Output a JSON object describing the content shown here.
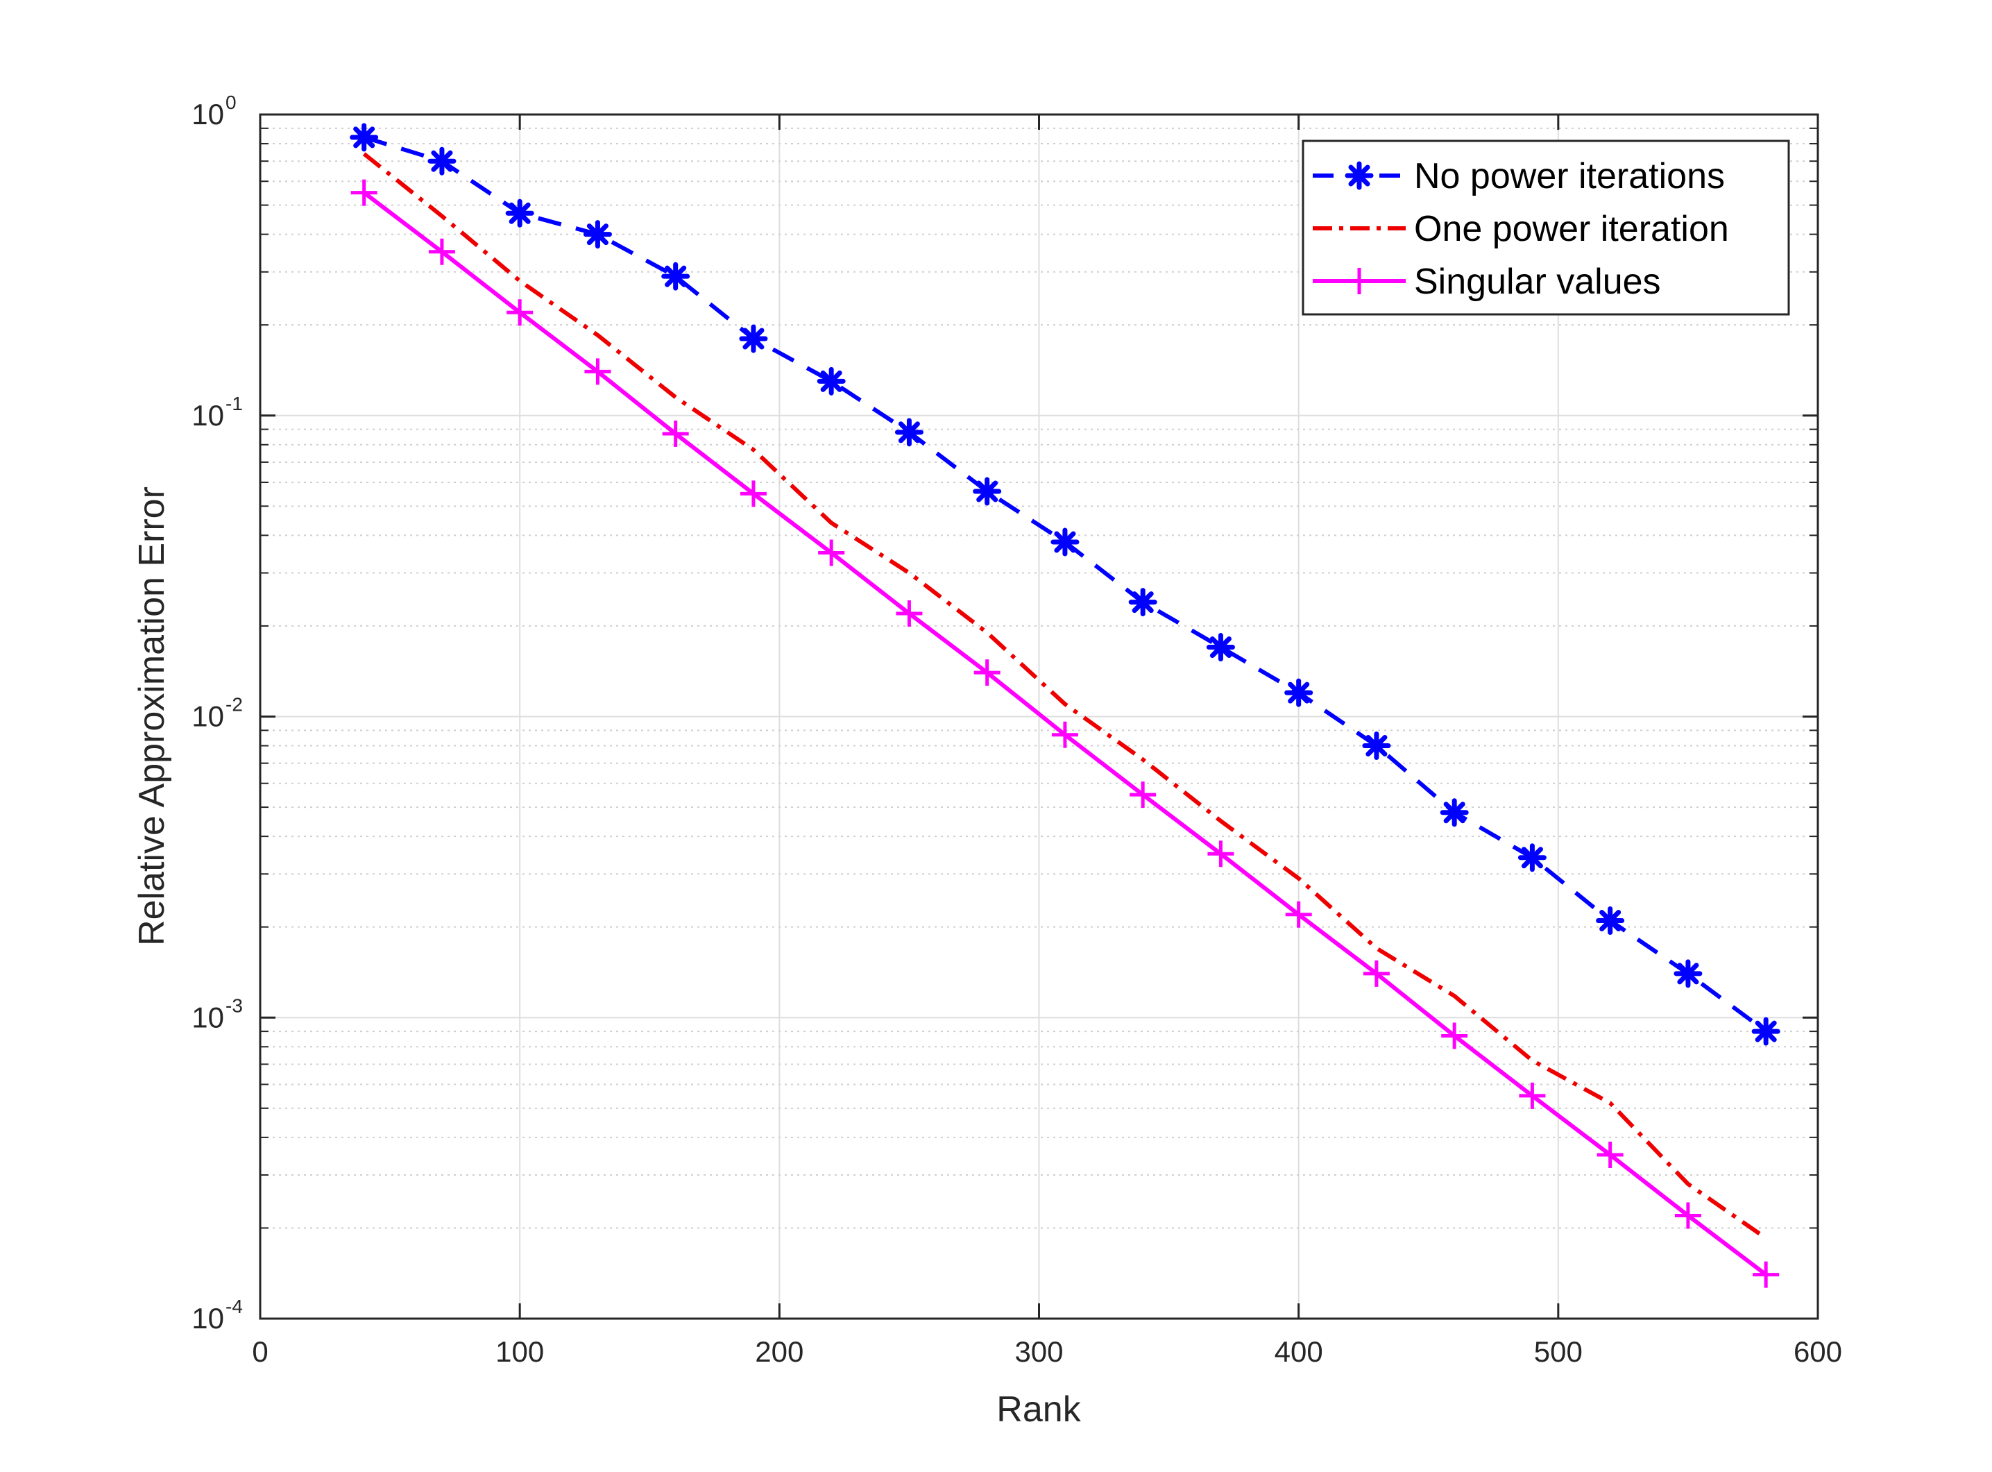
{
  "chart_data": {
    "type": "line",
    "title": "",
    "xlabel": "Rank",
    "ylabel": "Relative Approximation Error",
    "xlim": [
      0,
      600
    ],
    "ylim": [
      0.0001,
      1
    ],
    "yscale": "log",
    "grid": true,
    "legend_position": "top-right",
    "x_ticks": [
      "0",
      "100",
      "200",
      "300",
      "400",
      "500",
      "600"
    ],
    "y_ticks": [
      {
        "base": "10",
        "exp": "-4"
      },
      {
        "base": "10",
        "exp": "-3"
      },
      {
        "base": "10",
        "exp": "-2"
      },
      {
        "base": "10",
        "exp": "-1"
      },
      {
        "base": "10",
        "exp": "0"
      }
    ],
    "x": [
      40,
      70,
      100,
      130,
      160,
      190,
      220,
      250,
      280,
      310,
      340,
      370,
      400,
      430,
      460,
      490,
      520,
      550,
      580
    ],
    "series": [
      {
        "name": "No power iterations",
        "color": "#0000ff",
        "style": "dashed",
        "marker": "asterisk",
        "values": [
          0.84,
          0.7,
          0.47,
          0.4,
          0.29,
          0.18,
          0.13,
          0.088,
          0.056,
          0.038,
          0.024,
          0.017,
          0.012,
          0.008,
          0.0048,
          0.0034,
          0.0021,
          0.0014,
          0.0009
        ]
      },
      {
        "name": "One power iteration",
        "color": "#ee0000",
        "style": "dashdot",
        "marker": "none",
        "values": [
          0.74,
          0.46,
          0.28,
          0.185,
          0.115,
          0.077,
          0.044,
          0.03,
          0.019,
          0.011,
          0.0072,
          0.0045,
          0.0029,
          0.0017,
          0.00118,
          0.00072,
          0.00052,
          0.00028,
          0.000185
        ]
      },
      {
        "name": "Singular values",
        "color": "#ff00ff",
        "style": "solid",
        "marker": "plus",
        "values": [
          0.55,
          0.35,
          0.22,
          0.14,
          0.087,
          0.055,
          0.035,
          0.022,
          0.014,
          0.0087,
          0.0055,
          0.0035,
          0.0022,
          0.0014,
          0.00087,
          0.00055,
          0.00035,
          0.00022,
          0.00014
        ]
      }
    ]
  }
}
